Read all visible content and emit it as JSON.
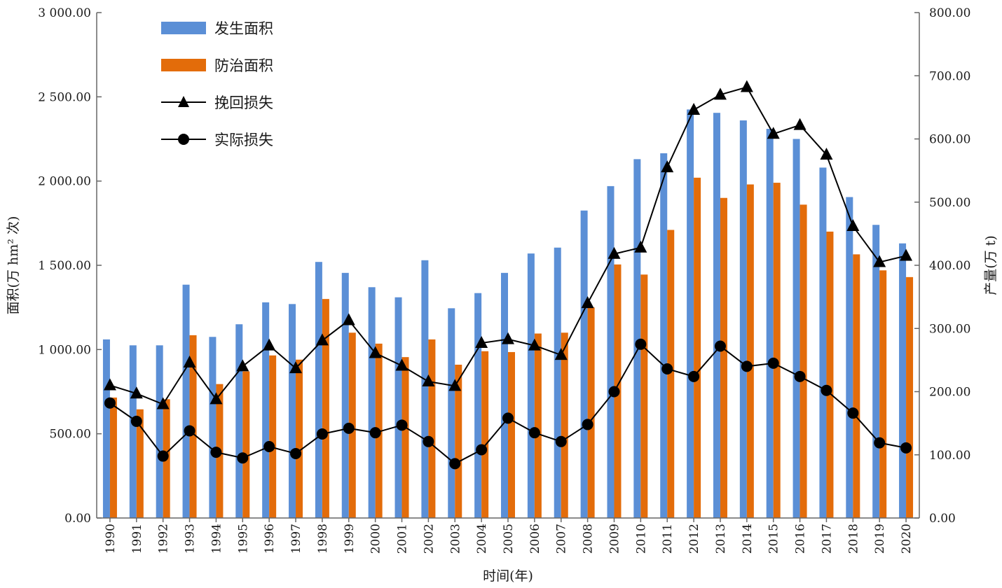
{
  "chart_data": {
    "type": "bar+line",
    "title": "",
    "xlabel": "时间(年)",
    "ylabel_left": "面积(万 hm² 次)",
    "ylabel_right": "产量(万 t)",
    "ylim_left": [
      0,
      3000
    ],
    "ylim_right": [
      0,
      800
    ],
    "yticks_left": [
      "0.00",
      "500.00",
      "1 000.00",
      "1 500.00",
      "2 000.00",
      "2 500.00",
      "3 000.00"
    ],
    "yticks_right": [
      "0.00",
      "100.00",
      "200.00",
      "300.00",
      "400.00",
      "500.00",
      "600.00",
      "700.00",
      "800.00"
    ],
    "grid": false,
    "legend_position": "top-left",
    "categories": [
      "1990",
      "1991",
      "1992",
      "1993",
      "1994",
      "1995",
      "1996",
      "1997",
      "1998",
      "1999",
      "2000",
      "2001",
      "2002",
      "2003",
      "2004",
      "2005",
      "2006",
      "2007",
      "2008",
      "2009",
      "2010",
      "2011",
      "2012",
      "2013",
      "2014",
      "2015",
      "2016",
      "2017",
      "2018",
      "2019",
      "2020"
    ],
    "series": [
      {
        "name": "发生面积",
        "kind": "bar",
        "axis": "left",
        "color": "#5b8fd6",
        "values": [
          1060,
          1025,
          1025,
          1385,
          1075,
          1150,
          1280,
          1270,
          1520,
          1455,
          1370,
          1310,
          1530,
          1245,
          1335,
          1455,
          1570,
          1605,
          1825,
          1970,
          2130,
          2165,
          2425,
          2405,
          2360,
          2310,
          2250,
          2080,
          1905,
          1740,
          1630
        ]
      },
      {
        "name": "防治面积",
        "kind": "bar",
        "axis": "left",
        "color": "#e36c0a",
        "values": [
          715,
          645,
          705,
          1085,
          795,
          870,
          965,
          940,
          1300,
          1100,
          1035,
          955,
          1060,
          910,
          990,
          985,
          1095,
          1100,
          1250,
          1505,
          1445,
          1710,
          2020,
          1900,
          1980,
          1990,
          1860,
          1700,
          1565,
          1470,
          1430
        ]
      },
      {
        "name": "挽回损失",
        "kind": "line",
        "marker": "triangle",
        "axis": "right",
        "color": "#000000",
        "values": [
          210,
          197,
          180,
          246,
          188,
          240,
          273,
          237,
          281,
          313,
          261,
          241,
          216,
          209,
          277,
          283,
          273,
          258,
          340,
          418,
          428,
          555,
          646,
          670,
          682,
          608,
          622,
          575,
          462,
          405,
          415
        ]
      },
      {
        "name": "实际损失",
        "kind": "line",
        "marker": "circle",
        "axis": "right",
        "color": "#000000",
        "values": [
          182,
          153,
          98,
          138,
          104,
          95,
          113,
          102,
          133,
          142,
          135,
          147,
          121,
          86,
          108,
          158,
          135,
          121,
          148,
          200,
          275,
          236,
          224,
          272,
          240,
          245,
          224,
          202,
          166,
          119,
          111
        ]
      }
    ]
  }
}
